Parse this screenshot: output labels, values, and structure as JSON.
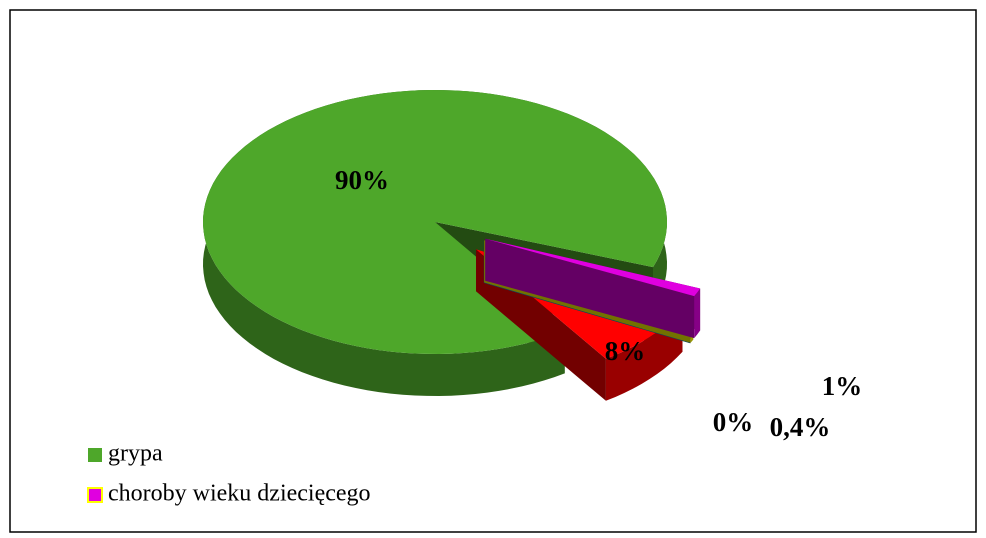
{
  "chart_data": {
    "type": "pie",
    "categories": [
      "grypa",
      null,
      null,
      null,
      "choroby wieku dziecięcego"
    ],
    "values": [
      90,
      8,
      0,
      0.4,
      1
    ],
    "value_labels": [
      "90%",
      "8%",
      "0%",
      "0,4%",
      "1%"
    ],
    "colors": [
      "#4ea72a",
      "#ff0000",
      "#1f9bd0",
      "#ffff00",
      "#e000e0"
    ],
    "legend": "bottom-left"
  }
}
